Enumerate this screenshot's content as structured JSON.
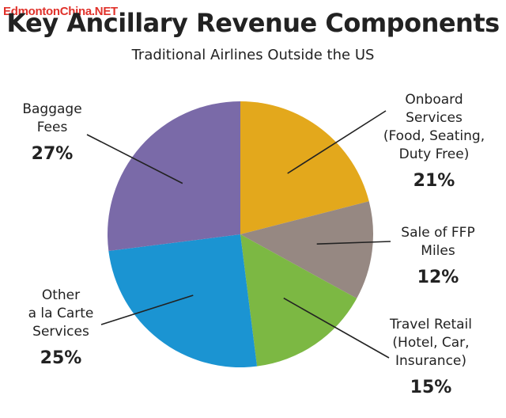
{
  "watermark": "EdmontonChina.NET",
  "chart_data": {
    "type": "pie",
    "title": "Key Ancillary Revenue Components",
    "subtitle": "Traditional Airlines Outside the US",
    "slices": [
      {
        "id": "onboard",
        "label_lines": [
          "Onboard",
          "Services",
          "(Food, Seating,",
          "Duty Free)"
        ],
        "pct_label": "21%",
        "value": 21,
        "color": "#e3a81c"
      },
      {
        "id": "ffp",
        "label_lines": [
          "Sale of FFP",
          "Miles"
        ],
        "pct_label": "12%",
        "value": 12,
        "color": "#968882"
      },
      {
        "id": "travel",
        "label_lines": [
          "Travel Retail",
          "(Hotel, Car,",
          "Insurance)"
        ],
        "pct_label": "15%",
        "value": 15,
        "color": "#7cb843"
      },
      {
        "id": "other",
        "label_lines": [
          "Other",
          "a la Carte",
          "Services"
        ],
        "pct_label": "25%",
        "value": 25,
        "color": "#1b94d2"
      },
      {
        "id": "baggage",
        "label_lines": [
          "Baggage",
          "Fees"
        ],
        "pct_label": "27%",
        "value": 27,
        "color": "#7a6aa8"
      }
    ]
  }
}
